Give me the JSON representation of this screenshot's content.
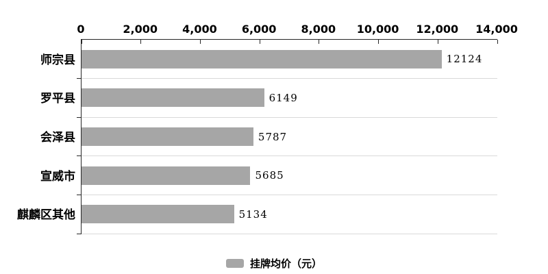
{
  "chart_data": {
    "type": "bar",
    "orientation": "horizontal",
    "title": "",
    "xlabel": "",
    "ylabel": "",
    "categories": [
      "师宗县",
      "罗平县",
      "会泽县",
      "宣威市",
      "麒麟区其他"
    ],
    "values": [
      12124,
      6149,
      5787,
      5685,
      5134
    ],
    "value_labels": [
      "12124",
      "6149",
      "5787",
      "5685",
      "5134"
    ],
    "series": [
      {
        "name": "挂牌均价（元）",
        "values": [
          12124,
          6149,
          5787,
          5685,
          5134
        ]
      }
    ],
    "xlim": [
      0,
      14000
    ],
    "x_ticks": [
      0,
      2000,
      4000,
      6000,
      8000,
      10000,
      12000,
      14000
    ],
    "x_tick_labels": [
      "0",
      "2,000",
      "4,000",
      "6,000",
      "8,000",
      "10,000",
      "12,000",
      "14,000"
    ],
    "grid": "horizontal band separators",
    "legend_position": "bottom",
    "colors": {
      "bar": "#a6a6a6",
      "axis": "#262626",
      "gridline": "#d9d9d9",
      "text": "#000000",
      "background": "#ffffff"
    }
  },
  "legend": {
    "label": "挂牌均价（元）"
  }
}
